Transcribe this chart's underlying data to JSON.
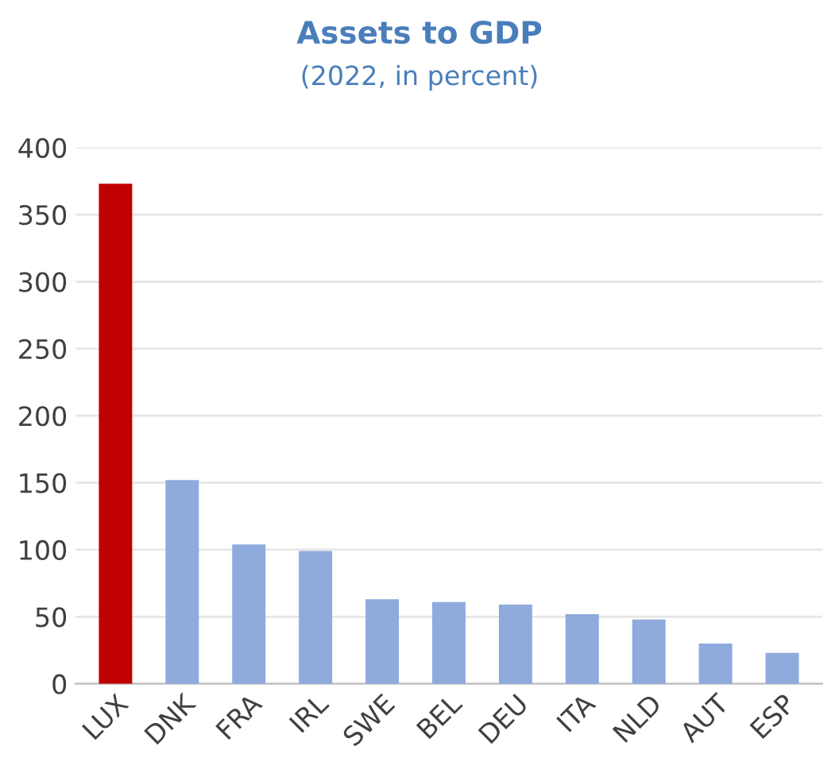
{
  "chart_data": {
    "type": "bar",
    "title": "Assets to GDP",
    "subtitle": "(2022, in percent)",
    "categories": [
      "LUX",
      "DNK",
      "FRA",
      "IRL",
      "SWE",
      "BEL",
      "DEU",
      "ITA",
      "NLD",
      "AUT",
      "ESP"
    ],
    "values": [
      373,
      152,
      104,
      99,
      63,
      61,
      59,
      52,
      48,
      30,
      23
    ],
    "colors": [
      "#c00000",
      "#8faadc",
      "#8faadc",
      "#8faadc",
      "#8faadc",
      "#8faadc",
      "#8faadc",
      "#8faadc",
      "#8faadc",
      "#8faadc",
      "#8faadc"
    ],
    "ylim": [
      0,
      400
    ],
    "yticks": [
      0,
      50,
      100,
      150,
      200,
      250,
      300,
      350,
      400
    ],
    "grid": "y",
    "legend": false
  }
}
